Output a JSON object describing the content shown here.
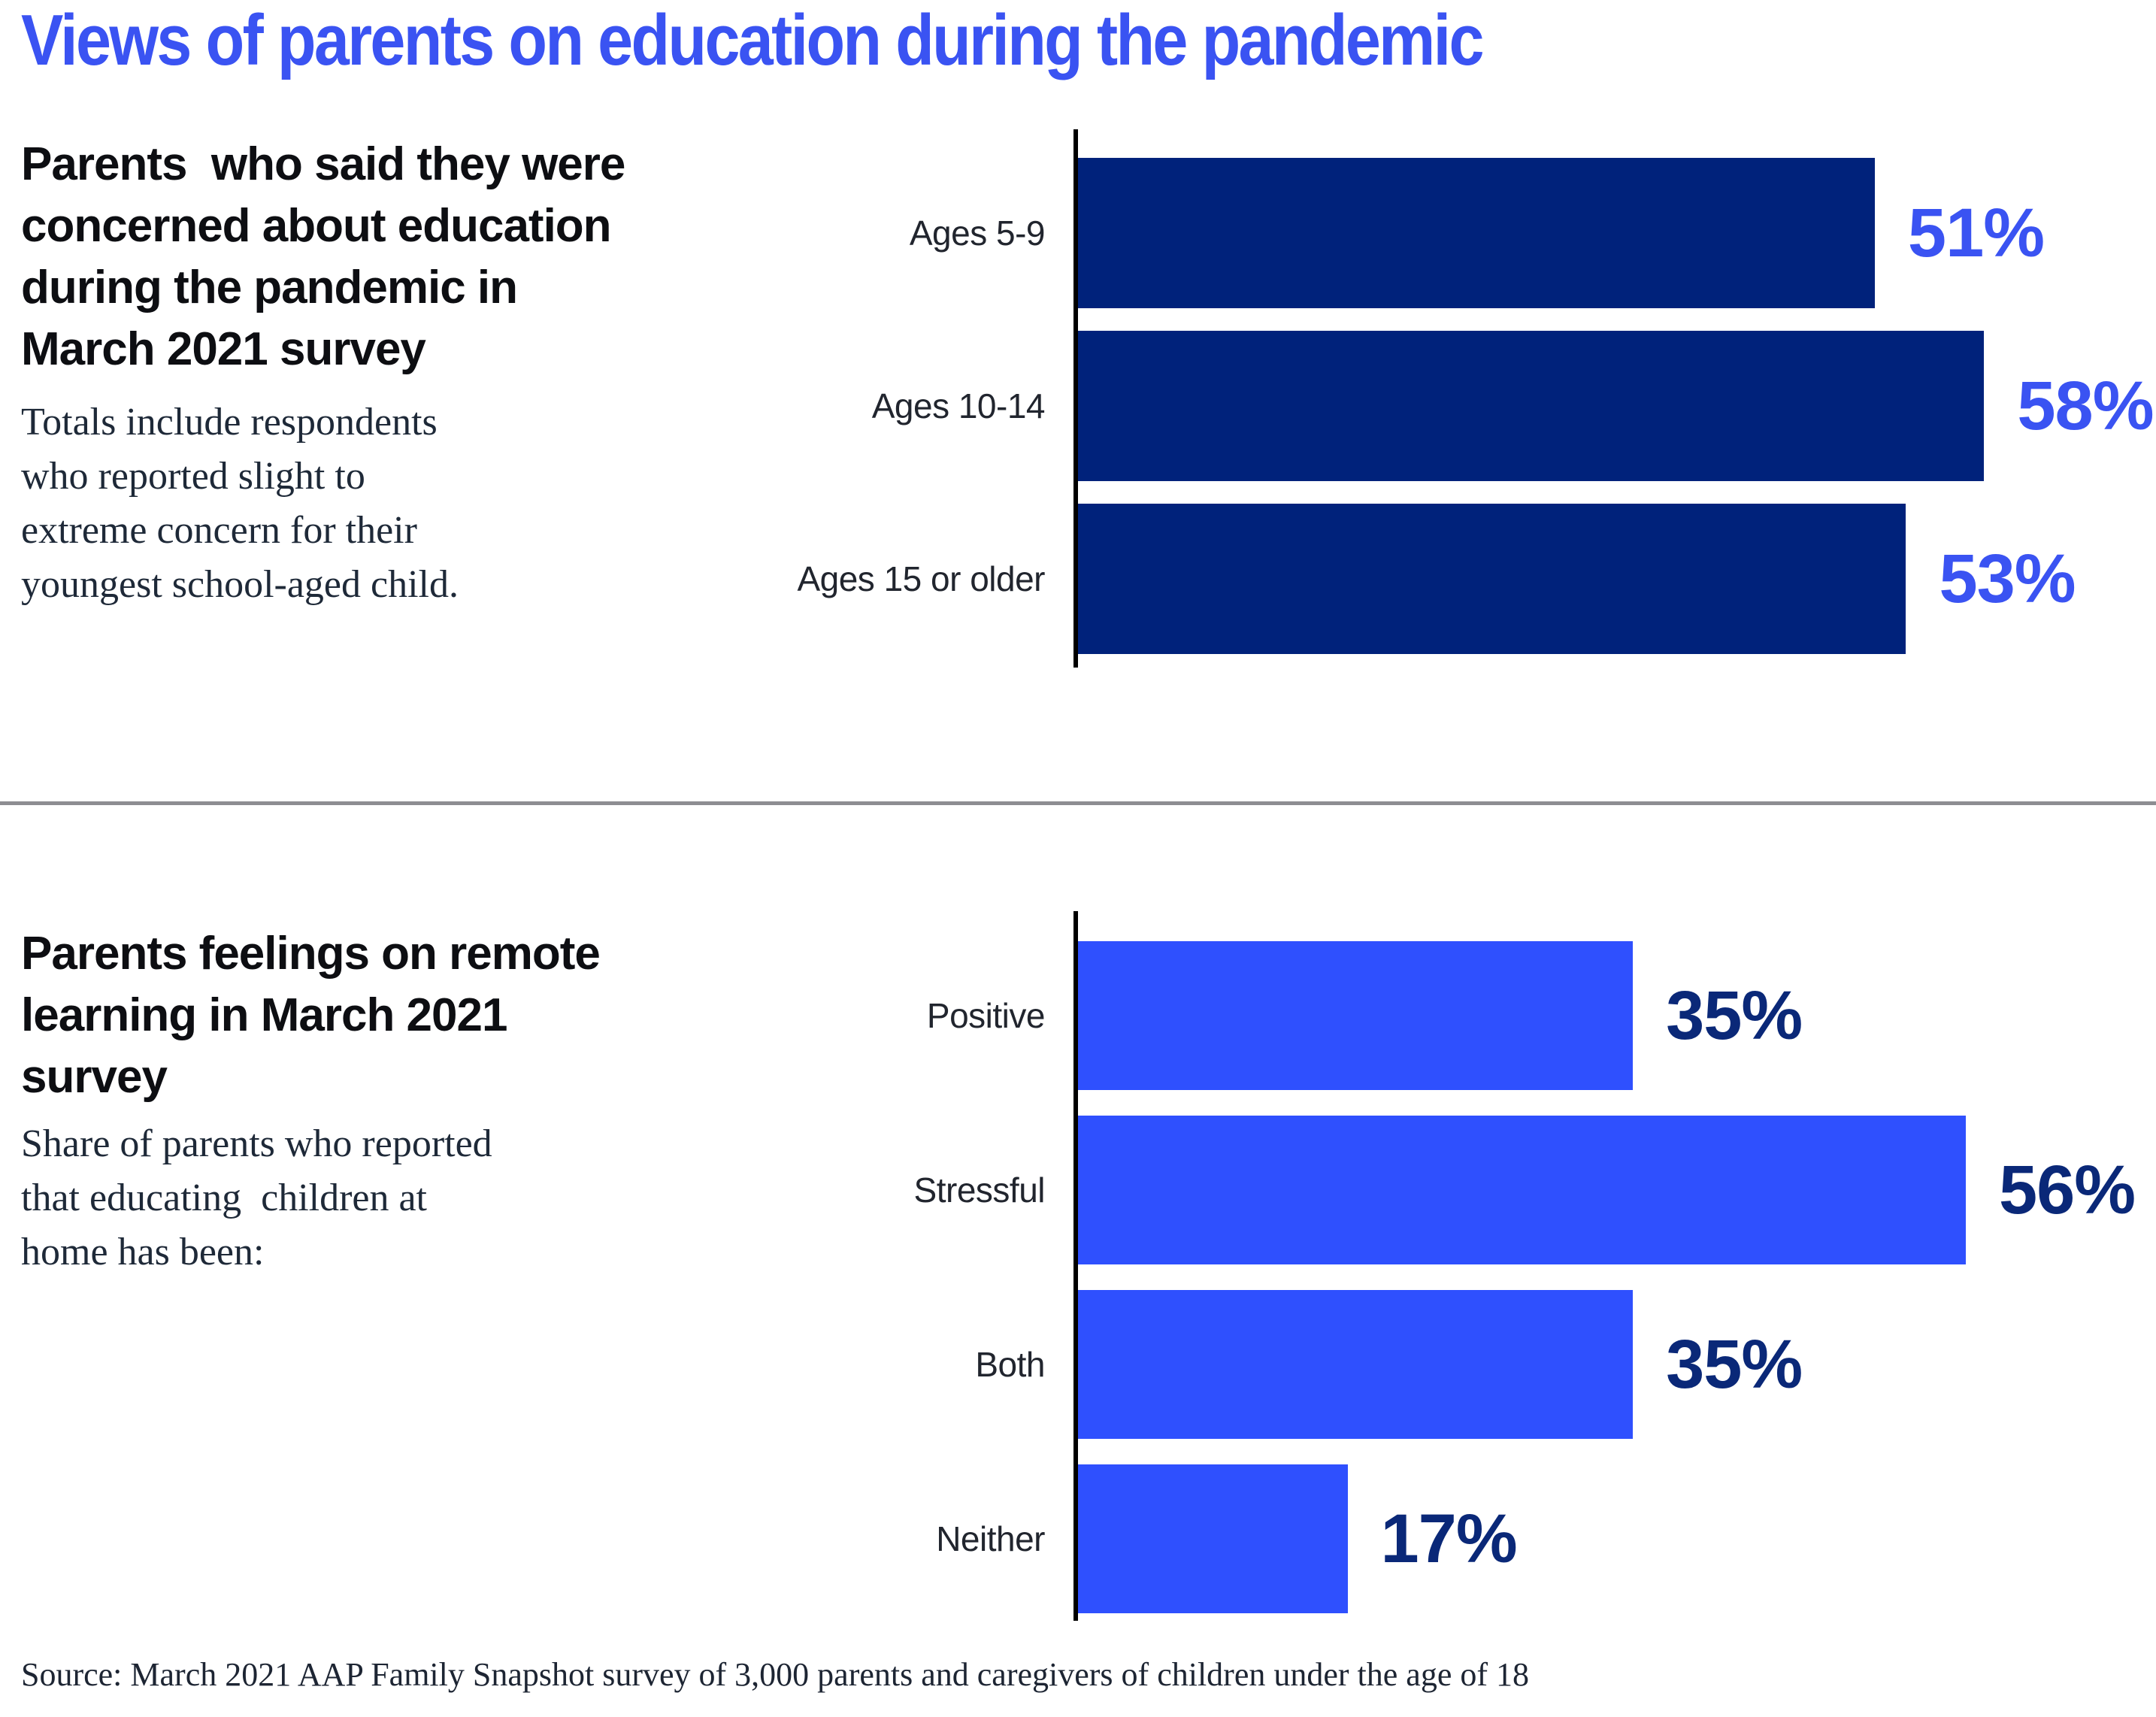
{
  "page": {
    "title": "Views of parents on education during the pandemic",
    "source": "Source: March 2021 AAP Family Snapshot survey of 3,000 parents and caregivers of children under the age of 18"
  },
  "colors": {
    "accent_blue": "#3a53f2",
    "navy_bar": "#00227b",
    "bright_blue_bar": "#2f50fe",
    "navy_value_label": "#0a2878",
    "divider_gray": "#8d8d92",
    "heading_black": "#0d0e12",
    "body_text": "#1e2938"
  },
  "chart_data": [
    {
      "type": "bar",
      "orientation": "horizontal",
      "title": "Parents  who said they were\nconcerned about education\nduring the pandemic in\nMarch 2021 survey",
      "subtitle": "Totals include respondents\nwho reported slight to\nextreme concern for their\nyoungest school-aged child.",
      "categories": [
        "Ages 5-9",
        "Ages 10-14",
        "Ages 15 or older"
      ],
      "values": [
        51,
        58,
        53
      ],
      "value_labels": [
        "51%",
        "58%",
        "53%"
      ],
      "xlabel": "",
      "ylabel": "",
      "xlim": [
        0,
        69
      ],
      "grid": false,
      "legend": "none",
      "bar_color": "#00227b",
      "value_label_color": "#3a53f2"
    },
    {
      "type": "bar",
      "orientation": "horizontal",
      "title": "Parents feelings on remote\nlearning in March 2021\nsurvey",
      "subtitle": "Share of parents who reported\nthat educating  children at\nhome has been:",
      "categories": [
        "Positive",
        "Stressful",
        "Both",
        "Neither"
      ],
      "values": [
        35,
        56,
        35,
        17
      ],
      "value_labels": [
        "35%",
        "56%",
        "35%",
        "17%"
      ],
      "xlabel": "",
      "ylabel": "",
      "xlim": [
        0,
        68
      ],
      "grid": false,
      "legend": "none",
      "bar_color": "#2f50fe",
      "value_label_color": "#0a2878"
    }
  ]
}
